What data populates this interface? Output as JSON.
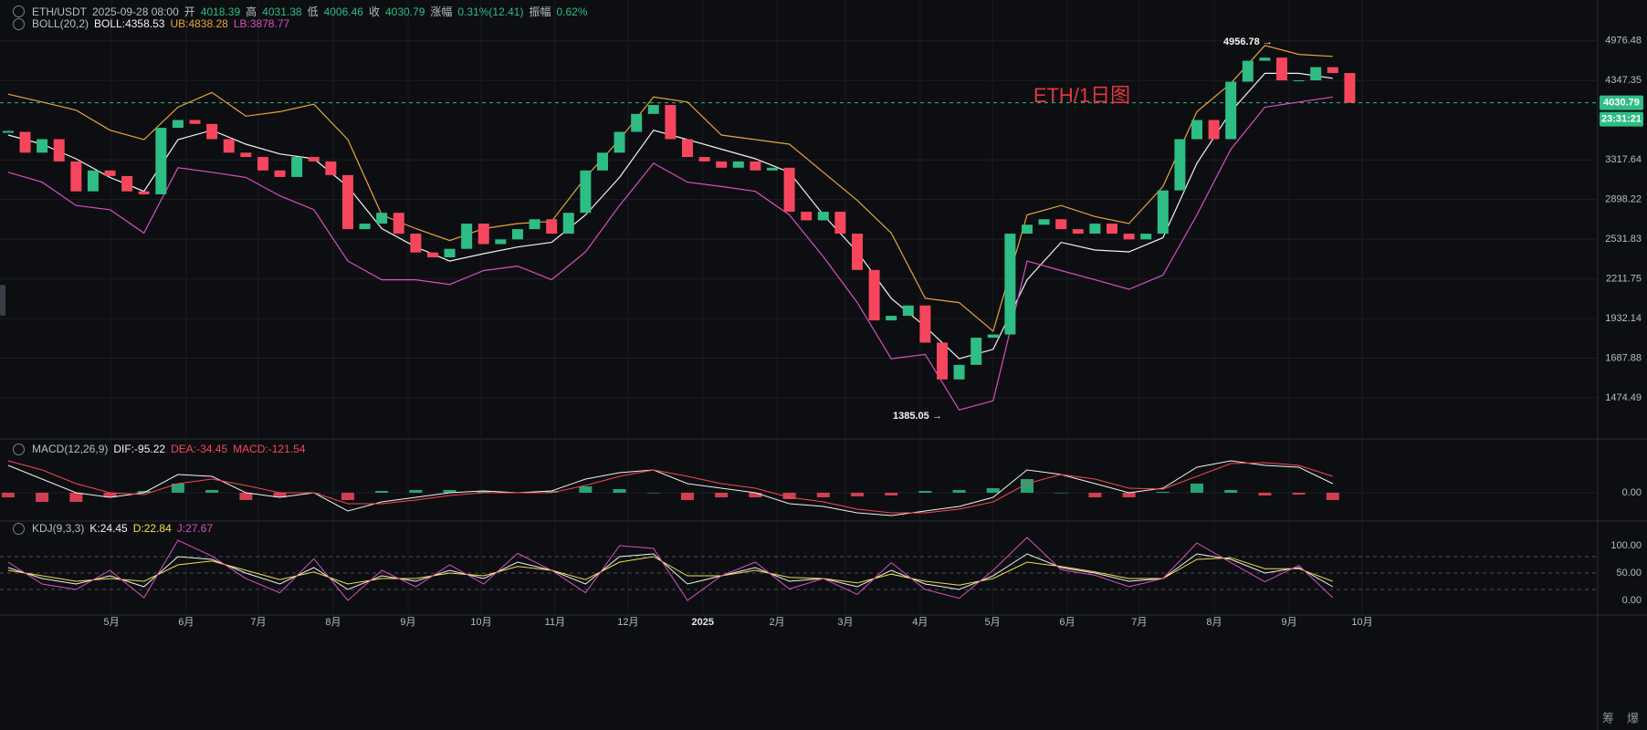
{
  "header": {
    "line1": [
      {
        "text": "ETH/USDT",
        "color": "#b7bdc6"
      },
      {
        "text": "2025-09-28 08:00",
        "color": "#b7bdc6"
      },
      {
        "text": "开",
        "color": "#b7bdc6"
      },
      {
        "text": "4018.39",
        "color": "#2ebd85"
      },
      {
        "text": "高",
        "color": "#b7bdc6"
      },
      {
        "text": "4031.38",
        "color": "#2ebd85"
      },
      {
        "text": "低",
        "color": "#b7bdc6"
      },
      {
        "text": "4006.46",
        "color": "#2ebd85"
      },
      {
        "text": "收",
        "color": "#b7bdc6"
      },
      {
        "text": "4030.79",
        "color": "#2ebd85"
      },
      {
        "text": "涨幅",
        "color": "#b7bdc6"
      },
      {
        "text": "0.31%(12.41)",
        "color": "#2ebd85"
      },
      {
        "text": "振幅",
        "color": "#b7bdc6"
      },
      {
        "text": "0.62%",
        "color": "#2ebd85"
      }
    ],
    "toolbar": [
      "筹",
      "爆"
    ]
  },
  "chart_data": [
    {
      "type": "candlestick",
      "title": "ETH/1日图",
      "legend": "BOLL(20,2)",
      "log_scale": true,
      "ylim": [
        1286,
        5720
      ],
      "yticks": [
        4976.48,
        4347.35,
        3317.64,
        2898.22,
        2531.83,
        2211.75,
        1932.14,
        1687.88,
        1474.49
      ],
      "xlim": [
        -0.48,
        93.6
      ],
      "up_color": "#2ebd85",
      "down_color": "#f6465d",
      "closes": [
        3650,
        3400,
        3560,
        3300,
        2980,
        3200,
        3140,
        2980,
        2950,
        3700,
        3800,
        3750,
        3560,
        3400,
        3350,
        3200,
        3130,
        3350,
        3300,
        3150,
        2620,
        2670,
        2770,
        2580,
        2420,
        2380,
        2450,
        2670,
        2490,
        2530,
        2620,
        2710,
        2580,
        2770,
        3200,
        3400,
        3650,
        3880,
        4000,
        3560,
        3350,
        3300,
        3230,
        3300,
        3200,
        3230,
        2780,
        2700,
        2780,
        2580,
        2280,
        1920,
        1950,
        2020,
        1780,
        1570,
        1650,
        1810,
        1830,
        2580,
        2660,
        2710,
        2620,
        2580,
        2670,
        2580,
        2530,
        2580,
        2990,
        3560,
        3800,
        3560,
        4330,
        4650,
        4700,
        4350,
        4350,
        4550,
        4460,
        4030.79
      ],
      "last_price": 4030.79,
      "last_price_label": "4030.79",
      "countdown": "23:31:21",
      "high_label": "4956.78 →",
      "low_label": "1385.05 →",
      "band_x": [
        0,
        2,
        4,
        6,
        8,
        10,
        12,
        14,
        16,
        18,
        20,
        22,
        24,
        26,
        28,
        30,
        32,
        34,
        36,
        38,
        40,
        42,
        44,
        46,
        48,
        50,
        52,
        54,
        56,
        58,
        60,
        62,
        64,
        66,
        68,
        70,
        72,
        74,
        76,
        78
      ],
      "bands": [
        {
          "label": "BOLL:4358.53",
          "color": "#f2f2f2",
          "values": [
            3610,
            3500,
            3330,
            3125,
            2980,
            3555,
            3670,
            3500,
            3385,
            3330,
            3030,
            2625,
            2465,
            2350,
            2410,
            2465,
            2505,
            2750,
            3125,
            3670,
            3555,
            3440,
            3330,
            3180,
            2750,
            2425,
            2070,
            1880,
            1685,
            1740,
            2205,
            2505,
            2440,
            2425,
            2545,
            3280,
            3910,
            4455,
            4455,
            4380
          ]
        },
        {
          "label": "UB:4838.28",
          "color": "#e8a33d",
          "values": [
            4150,
            4040,
            3930,
            3670,
            3555,
            3970,
            4175,
            3850,
            3910,
            4010,
            3555,
            2750,
            2625,
            2520,
            2625,
            2670,
            2690,
            3125,
            3555,
            4110,
            4040,
            3610,
            3555,
            3500,
            3180,
            2890,
            2585,
            2070,
            2040,
            1850,
            2750,
            2840,
            2735,
            2670,
            3030,
            3910,
            4307,
            4900,
            4752,
            4720
          ]
        },
        {
          "label": "LB:3878.77",
          "color": "#d94fc3",
          "values": [
            3180,
            3075,
            2840,
            2800,
            2585,
            3230,
            3180,
            3125,
            2935,
            2800,
            2350,
            2205,
            2205,
            2170,
            2275,
            2310,
            2205,
            2425,
            2840,
            3280,
            3075,
            3030,
            2980,
            2750,
            2385,
            2040,
            1685,
            1710,
            1415,
            1460,
            2350,
            2275,
            2205,
            2135,
            2240,
            2750,
            3440,
            3970,
            4040,
            4110
          ]
        }
      ]
    },
    {
      "type": "macd",
      "legend": "MACD(12,26,9)",
      "ylim": [
        -180,
        348
      ],
      "yticks": [
        {
          "value": 0,
          "label": "0.00"
        }
      ],
      "xlim": [
        -0.48,
        93.6
      ],
      "x": [
        0,
        2,
        4,
        6,
        8,
        10,
        12,
        14,
        16,
        18,
        20,
        22,
        24,
        26,
        28,
        30,
        32,
        34,
        36,
        38,
        40,
        42,
        44,
        46,
        48,
        50,
        52,
        54,
        56,
        58,
        60,
        62,
        64,
        66,
        68,
        70,
        72,
        74,
        76,
        78
      ],
      "series": [
        {
          "label": "DIF:-95.22",
          "color": "#f2f2f2",
          "values": [
            180,
            90,
            0,
            -30,
            0,
            120,
            108,
            0,
            -30,
            0,
            -120,
            -60,
            -30,
            0,
            12,
            0,
            12,
            90,
            132,
            150,
            60,
            30,
            0,
            -72,
            -90,
            -132,
            -150,
            -120,
            -90,
            -30,
            150,
            120,
            60,
            0,
            30,
            168,
            210,
            180,
            168,
            60
          ]
        },
        {
          "label": "DEA:-34.45",
          "color": "#f6465d",
          "values": [
            210,
            150,
            60,
            0,
            -12,
            60,
            90,
            48,
            0,
            0,
            -72,
            -72,
            -48,
            -18,
            0,
            0,
            0,
            48,
            108,
            150,
            108,
            60,
            30,
            -30,
            -60,
            -108,
            -132,
            -132,
            -108,
            -60,
            60,
            120,
            90,
            30,
            24,
            108,
            192,
            198,
            180,
            108
          ]
        }
      ],
      "histogram": {
        "label": "MACD:-121.54",
        "color": "#f6465d",
        "up_color": "#2ebd85",
        "down_color": "#f6465d",
        "values": [
          -30,
          -60,
          -60,
          -30,
          12,
          60,
          18,
          -48,
          -30,
          0,
          -48,
          12,
          18,
          18,
          12,
          0,
          12,
          42,
          24,
          0,
          -48,
          -30,
          -30,
          -42,
          -30,
          -24,
          -18,
          12,
          18,
          30,
          90,
          0,
          -30,
          -30,
          6,
          60,
          18,
          -18,
          -12,
          -48
        ]
      }
    },
    {
      "type": "kdj",
      "legend": "KDJ(9,3,3)",
      "ylim": [
        -25,
        143.3
      ],
      "yticks": [
        {
          "value": 100,
          "label": "100.00"
        },
        {
          "value": 50,
          "label": "50.00"
        },
        {
          "value": 0,
          "label": "0.00"
        }
      ],
      "reference_lines": [
        80,
        50,
        20
      ],
      "xlim": [
        -0.48,
        93.6
      ],
      "xticks": [
        {
          "value": 6.08,
          "label": "5月"
        },
        {
          "value": 10.48,
          "label": "6月"
        },
        {
          "value": 14.73,
          "label": "7月"
        },
        {
          "value": 19.14,
          "label": "8月"
        },
        {
          "value": 23.55,
          "label": "9月"
        },
        {
          "value": 27.85,
          "label": "10月"
        },
        {
          "value": 32.2,
          "label": "11月"
        },
        {
          "value": 36.5,
          "label": "12月"
        },
        {
          "value": 40.9,
          "label": "2025"
        },
        {
          "value": 45.27,
          "label": "2月"
        },
        {
          "value": 49.3,
          "label": "3月"
        },
        {
          "value": 53.7,
          "label": "4月"
        },
        {
          "value": 57.96,
          "label": "5月"
        },
        {
          "value": 62.37,
          "label": "6月"
        },
        {
          "value": 66.6,
          "label": "7月"
        },
        {
          "value": 71.02,
          "label": "8月"
        },
        {
          "value": 75.43,
          "label": "9月"
        },
        {
          "value": 79.73,
          "label": "10月"
        }
      ],
      "x": [
        0,
        2,
        4,
        6,
        8,
        10,
        12,
        14,
        16,
        18,
        20,
        22,
        24,
        26,
        28,
        30,
        32,
        34,
        36,
        38,
        40,
        42,
        44,
        46,
        48,
        50,
        52,
        54,
        56,
        58,
        60,
        62,
        64,
        66,
        68,
        70,
        72,
        74,
        76,
        78
      ],
      "series": [
        {
          "label": "K:24.45",
          "color": "#f2f2f2",
          "values": [
            60,
            40,
            30,
            45,
            25,
            80,
            75,
            50,
            30,
            60,
            20,
            45,
            35,
            55,
            40,
            70,
            55,
            30,
            80,
            85,
            30,
            45,
            60,
            35,
            40,
            25,
            55,
            30,
            20,
            45,
            85,
            60,
            50,
            35,
            40,
            85,
            75,
            50,
            60,
            25
          ]
        },
        {
          "label": "D:22.84",
          "color": "#f0e04a",
          "values": [
            55,
            45,
            35,
            40,
            35,
            65,
            72,
            55,
            38,
            52,
            30,
            40,
            40,
            50,
            45,
            62,
            55,
            38,
            70,
            80,
            45,
            45,
            55,
            42,
            40,
            32,
            48,
            35,
            28,
            40,
            70,
            62,
            52,
            40,
            40,
            75,
            78,
            58,
            58,
            35
          ]
        },
        {
          "label": "J:27.67",
          "color": "#d94fc3",
          "values": [
            70,
            30,
            20,
            55,
            5,
            110,
            81,
            40,
            14,
            76,
            0,
            55,
            25,
            65,
            30,
            86,
            55,
            14,
            100,
            95,
            0,
            45,
            70,
            21,
            40,
            11,
            69,
            20,
            4,
            55,
            115,
            56,
            46,
            25,
            40,
            105,
            69,
            34,
            64,
            5
          ]
        }
      ]
    }
  ]
}
